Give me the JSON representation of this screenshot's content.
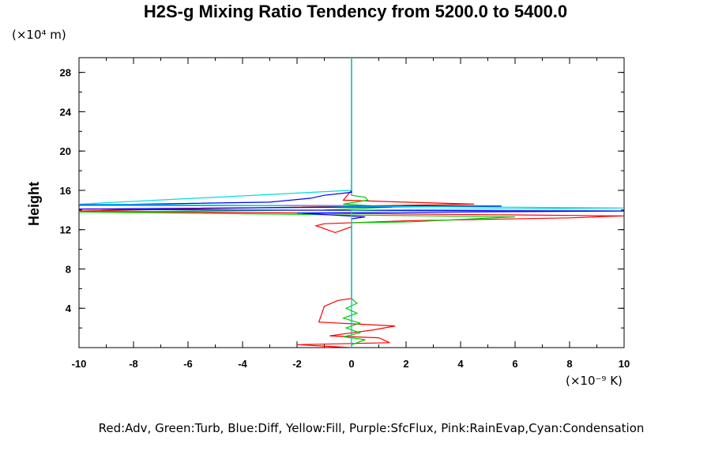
{
  "chart_data": {
    "type": "line",
    "title": "H2S-g Mixing Ratio Tendency from 5200.0 to 5400.0",
    "ylabel": "Height",
    "y_unit": "(×10⁴ m)",
    "x_unit": "(×10⁻⁹ K)",
    "xlim": [
      -10,
      10
    ],
    "ylim": [
      0,
      29.5
    ],
    "xticks": [
      -10,
      -8,
      -6,
      -4,
      -2,
      0,
      2,
      4,
      6,
      8,
      10
    ],
    "yticks": [
      4,
      8,
      12,
      16,
      20,
      24,
      28
    ],
    "xtick_labels": [
      "-10",
      "-8",
      "-6",
      "-4",
      "-2",
      "0",
      "2",
      "4",
      "6",
      "8",
      "10"
    ],
    "ytick_labels": [
      "4",
      "8",
      "12",
      "16",
      "20",
      "24",
      "28"
    ],
    "legend_text": "Red:Adv, Green:Turb, Blue:Diff, Yellow:Fill, Purple:SfcFlux, Pink:RainEvap,Cyan:Condensation",
    "series": [
      {
        "name": "Adv",
        "color": "#ff0000",
        "points": [
          [
            0,
            29.5
          ],
          [
            0,
            16
          ],
          [
            -0.3,
            15
          ],
          [
            2,
            14.8
          ],
          [
            4.5,
            14.6
          ],
          [
            -4,
            14.2
          ],
          [
            -10,
            13.9
          ],
          [
            10,
            13.4
          ],
          [
            8,
            13.2
          ],
          [
            2,
            12.9
          ],
          [
            -1,
            12.6
          ],
          [
            -1.3,
            12.4
          ],
          [
            -0.6,
            11.7
          ],
          [
            0,
            12.3
          ],
          [
            0,
            5
          ],
          [
            -0.5,
            4.8
          ],
          [
            -1,
            4.2
          ],
          [
            -1.1,
            3.4
          ],
          [
            -1.2,
            2.6
          ],
          [
            1.6,
            2.2
          ],
          [
            0.8,
            1.8
          ],
          [
            0,
            1.5
          ],
          [
            -0.8,
            1.2
          ],
          [
            1,
            1.0
          ],
          [
            1.4,
            0.5
          ],
          [
            -2,
            0.3
          ],
          [
            0,
            0
          ]
        ]
      },
      {
        "name": "Turb",
        "color": "#00cc00",
        "points": [
          [
            0,
            29.5
          ],
          [
            0,
            15.5
          ],
          [
            0.5,
            15.3
          ],
          [
            0.6,
            15.0
          ],
          [
            -0.3,
            14.6
          ],
          [
            1.5,
            14.3
          ],
          [
            -1,
            14.0
          ],
          [
            -10,
            13.8
          ],
          [
            3,
            13.4
          ],
          [
            6,
            13.3
          ],
          [
            2.2,
            12.8
          ],
          [
            0,
            12.7
          ],
          [
            0,
            5
          ],
          [
            0.2,
            4.5
          ],
          [
            -0.2,
            4
          ],
          [
            0.2,
            3.5
          ],
          [
            -0.3,
            3
          ],
          [
            0.3,
            2.5
          ],
          [
            -0.2,
            2
          ],
          [
            0.3,
            1.5
          ],
          [
            -0.3,
            1.1
          ],
          [
            0.5,
            0.8
          ],
          [
            0,
            0.3
          ],
          [
            0,
            0
          ]
        ]
      },
      {
        "name": "Diff",
        "color": "#0000ff",
        "points": [
          [
            0,
            29.5
          ],
          [
            0,
            15.8
          ],
          [
            -1,
            15.5
          ],
          [
            -1.5,
            15.2
          ],
          [
            -3,
            14.8
          ],
          [
            -10,
            14.5
          ],
          [
            5.5,
            14.4
          ],
          [
            -10,
            14.1
          ],
          [
            -5,
            14.0
          ],
          [
            10,
            13.9
          ],
          [
            -2,
            13.7
          ],
          [
            0.5,
            13.3
          ],
          [
            0,
            13.1
          ],
          [
            0,
            0
          ]
        ]
      },
      {
        "name": "Condensation",
        "color": "#00dddd",
        "points": [
          [
            0,
            29.5
          ],
          [
            0,
            16
          ],
          [
            -10,
            14.6
          ],
          [
            0,
            14.4
          ],
          [
            10,
            14.2
          ],
          [
            0,
            14.0
          ],
          [
            0,
            0
          ]
        ]
      }
    ]
  }
}
